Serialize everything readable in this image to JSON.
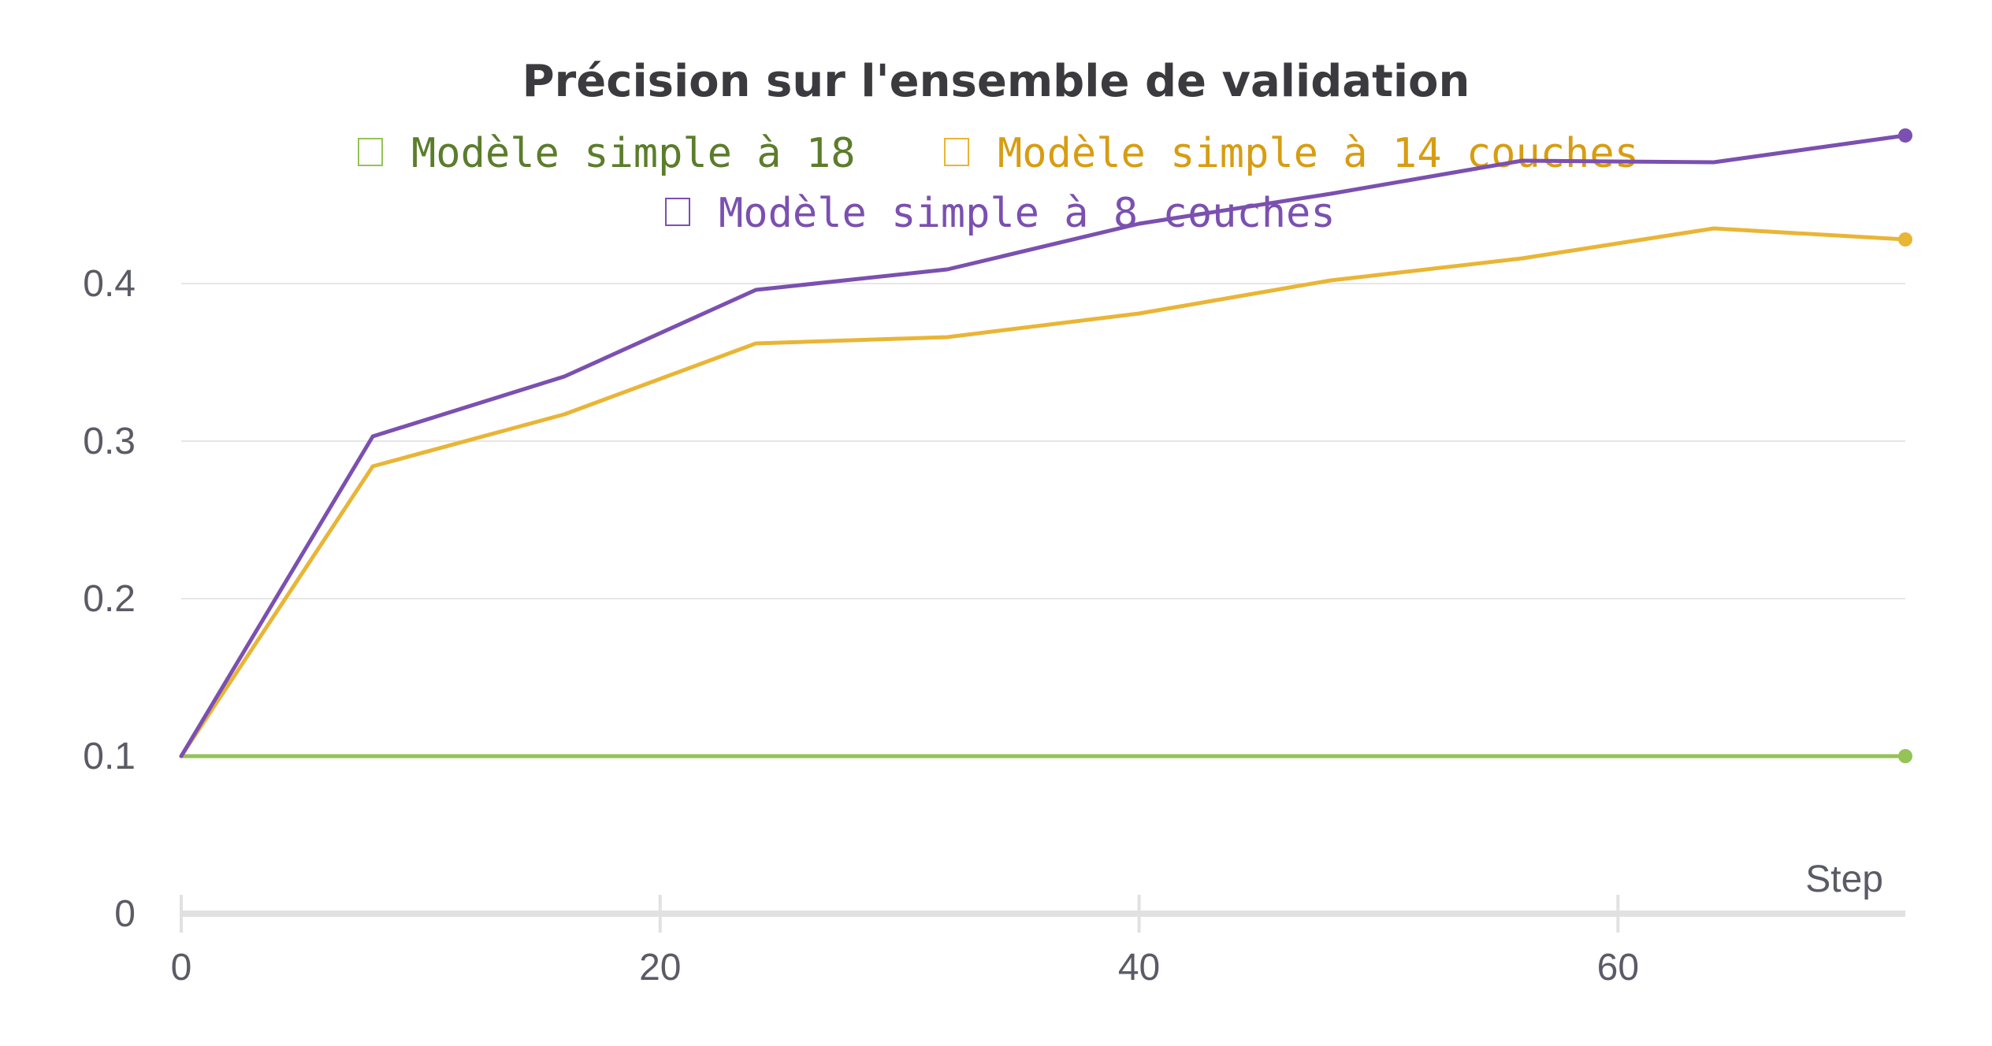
{
  "chart_data": {
    "type": "line",
    "title": "Précision sur l'ensemble de validation",
    "xlabel": "Step",
    "ylabel": "",
    "xlim": [
      0,
      72
    ],
    "ylim": [
      0,
      0.5
    ],
    "x_ticks": [
      0,
      20,
      40,
      60
    ],
    "y_ticks": [
      0,
      0.1,
      0.2,
      0.3,
      0.4
    ],
    "x_tick_labels": [
      "0",
      "20",
      "40",
      "60"
    ],
    "y_tick_labels": [
      "0",
      "0.1",
      "0.2",
      "0.3",
      "0.4"
    ],
    "grid": true,
    "legend_position": "top",
    "x": [
      0,
      8,
      16,
      24,
      32,
      40,
      48,
      56,
      64,
      72
    ],
    "series": [
      {
        "name": "Modèle simple à 18",
        "color": "#94c356",
        "legend_color": "#5b7d2b",
        "values": [
          0.1,
          0.1,
          0.1,
          0.1,
          0.1,
          0.1,
          0.1,
          0.1,
          0.1,
          0.1
        ]
      },
      {
        "name": "Modèle simple à 14 couches",
        "color": "#e9b536",
        "legend_color": "#d79d12",
        "values": [
          0.1,
          0.284,
          0.317,
          0.362,
          0.366,
          0.381,
          0.402,
          0.416,
          0.435,
          0.428
        ]
      },
      {
        "name": "Modèle simple à 8 couches",
        "color": "#7b50b0",
        "legend_color": "#7b50b0",
        "values": [
          0.1,
          0.303,
          0.341,
          0.396,
          0.409,
          0.438,
          0.457,
          0.478,
          0.477,
          0.494
        ]
      }
    ]
  }
}
